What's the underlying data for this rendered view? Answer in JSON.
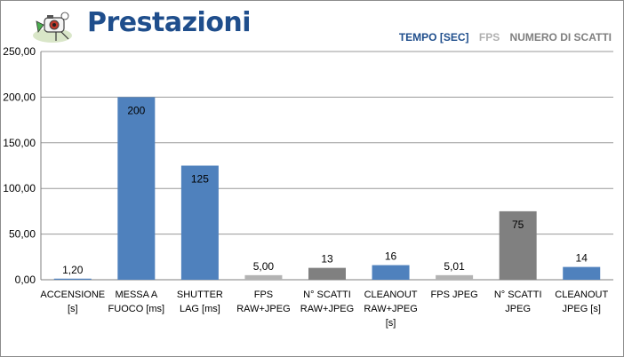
{
  "title": "Prestazioni",
  "legend": [
    {
      "label": "TEMPO [SEC]",
      "color": "#1f4e8c"
    },
    {
      "label": "FPS",
      "color": "#b0b0b0"
    },
    {
      "label": "NUMERO DI SCATTI",
      "color": "#7f7f7f"
    }
  ],
  "colors": {
    "tempo": "#4f81bd",
    "fps": "#b3b3b3",
    "scatti": "#808080",
    "grid": "#9a9a9a"
  },
  "chart_data": {
    "type": "bar",
    "ylim": [
      0,
      250
    ],
    "yticks": [
      "0,00",
      "50,00",
      "100,00",
      "150,00",
      "200,00",
      "250,00"
    ],
    "grid": true,
    "legend_position": "top-right",
    "categories": [
      [
        "ACCENSIONE",
        "[s]"
      ],
      [
        "MESSA A",
        "FUOCO [ms]"
      ],
      [
        "SHUTTER",
        "LAG [ms]"
      ],
      [
        "FPS",
        "RAW+JPEG"
      ],
      [
        "N° SCATTI",
        "RAW+JPEG"
      ],
      [
        "CLEANOUT",
        "RAW+JPEG",
        "[s]"
      ],
      [
        "FPS JPEG"
      ],
      [
        "N° SCATTI",
        "JPEG"
      ],
      [
        "CLEANOUT",
        "JPEG [s]"
      ]
    ],
    "values": [
      1.2,
      200,
      125,
      5.0,
      13,
      16,
      5.01,
      75,
      14
    ],
    "labels": [
      "1,20",
      "200",
      "125",
      "5,00",
      "13",
      "16",
      "5,01",
      "75",
      "14"
    ],
    "kinds": [
      "tempo",
      "tempo",
      "tempo",
      "fps",
      "scatti",
      "tempo",
      "fps",
      "scatti",
      "tempo"
    ]
  }
}
